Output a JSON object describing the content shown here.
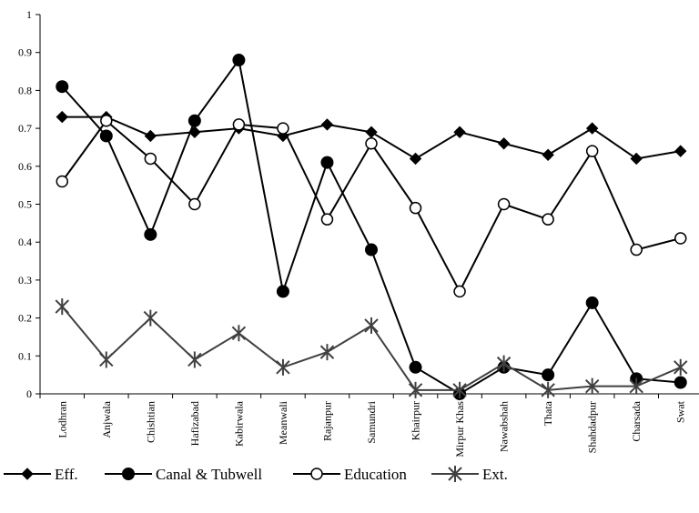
{
  "chart_data": {
    "type": "line",
    "title": "",
    "xlabel": "",
    "ylabel": "",
    "ylim": [
      0,
      1
    ],
    "yticks": [
      "0",
      "0.1",
      "0.2",
      "0.3",
      "0.4",
      "0.5",
      "0.6",
      "0.7",
      "0.8",
      "0.9",
      "1"
    ],
    "grid": false,
    "legend_position": "bottom",
    "categories": [
      "Lodhran",
      "Anjwala",
      "Chishtian",
      "Hafizabad",
      "Kabirwala",
      "Meanwali",
      "Rajanpur",
      "Samundri",
      "Khairpur",
      "Mirpur Khas",
      "Nawabshah",
      "Thata",
      "Shahdadpur",
      "Charsada",
      "Swat"
    ],
    "series": [
      {
        "name": "Eff.",
        "marker": "diamond",
        "color": "#000000",
        "values": [
          0.73,
          0.73,
          0.68,
          0.69,
          0.7,
          0.68,
          0.71,
          0.69,
          0.62,
          0.69,
          0.66,
          0.63,
          0.7,
          0.62,
          0.64
        ]
      },
      {
        "name": "Canal & Tubwell",
        "marker": "filled-circle",
        "color": "#000000",
        "values": [
          0.81,
          0.68,
          0.42,
          0.72,
          0.88,
          0.27,
          0.61,
          0.38,
          0.07,
          0.0,
          0.07,
          0.05,
          0.24,
          0.04,
          0.03
        ]
      },
      {
        "name": "Education",
        "marker": "open-circle",
        "color": "#000000",
        "values": [
          0.56,
          0.72,
          0.62,
          0.5,
          0.71,
          0.7,
          0.46,
          0.66,
          0.49,
          0.27,
          0.5,
          0.46,
          0.64,
          0.38,
          0.41
        ]
      },
      {
        "name": "Ext.",
        "marker": "star",
        "color": "#404040",
        "values": [
          0.23,
          0.09,
          0.2,
          0.09,
          0.16,
          0.07,
          0.11,
          0.18,
          0.01,
          0.01,
          0.08,
          0.01,
          0.02,
          0.02,
          0.07
        ]
      }
    ]
  }
}
